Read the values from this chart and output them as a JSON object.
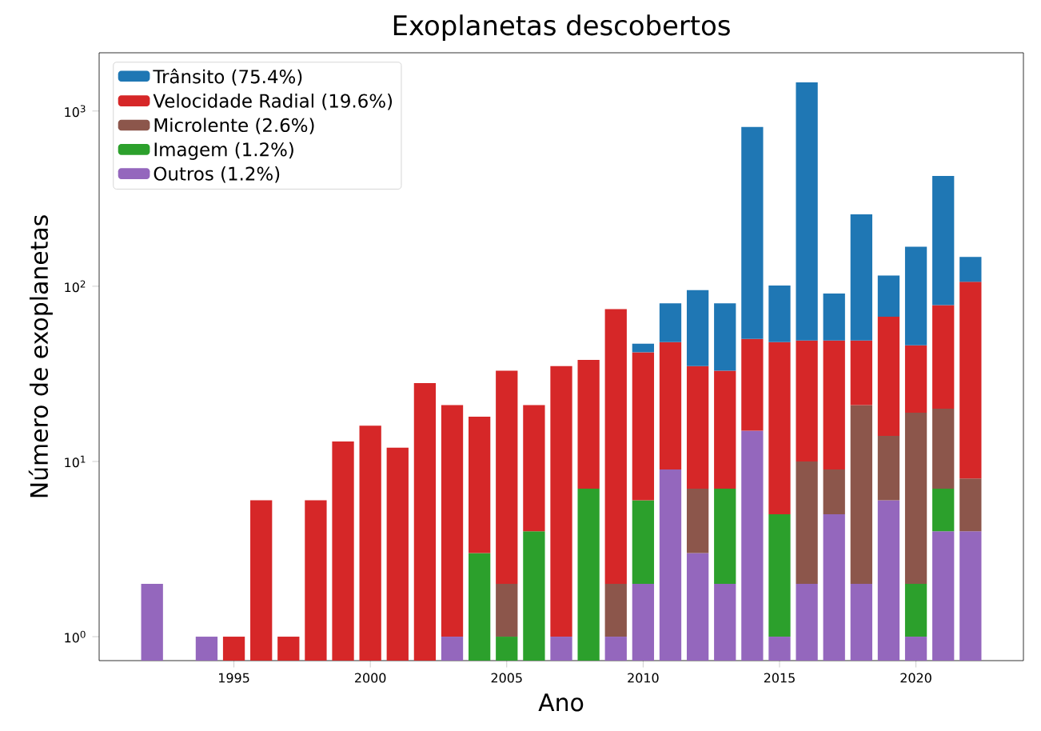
{
  "chart_data": {
    "type": "bar",
    "title": "Exoplanetas descobertos",
    "xlabel": "Ano",
    "ylabel": "Número de exoplanetas",
    "x": [
      1992,
      1994,
      1995,
      1996,
      1997,
      1998,
      1999,
      2000,
      2001,
      2002,
      2003,
      2004,
      2005,
      2006,
      2007,
      2008,
      2009,
      2010,
      2011,
      2012,
      2013,
      2014,
      2015,
      2016,
      2017,
      2018,
      2019,
      2020,
      2021,
      2022
    ],
    "stacked": true,
    "log": "y",
    "legend": "top left",
    "grid": false,
    "xlim": [
      1990.06,
      2023.94
    ],
    "xticks": [
      1995,
      2000,
      2005,
      2010,
      2015,
      2020
    ],
    "ylim": [
      0.73,
      2150
    ],
    "yticks": [
      {
        "value": 1,
        "label": "10$^{0}$"
      },
      {
        "value": 10,
        "label": "10$^{1}$"
      },
      {
        "value": 100,
        "label": "10$^{2}$"
      },
      {
        "value": 1000,
        "label": "10$^{3}$"
      }
    ],
    "series": [
      {
        "name": "Outros (1.2%)",
        "color": "#9467bd",
        "values": [
          2,
          1,
          null,
          null,
          null,
          null,
          null,
          null,
          null,
          null,
          1,
          null,
          null,
          null,
          1,
          null,
          1,
          2,
          9,
          3,
          2,
          15,
          1,
          2,
          5,
          2,
          6,
          1,
          4,
          4
        ]
      },
      {
        "name": "Imagem (1.2%)",
        "color": "#2ca02c",
        "values": [
          null,
          null,
          null,
          null,
          null,
          null,
          null,
          null,
          null,
          null,
          null,
          3,
          1,
          4,
          null,
          7,
          null,
          4,
          null,
          null,
          5,
          null,
          4,
          null,
          null,
          null,
          null,
          1,
          3,
          null
        ]
      },
      {
        "name": "Microlente (2.6%)",
        "color": "#8c564b",
        "values": [
          null,
          null,
          null,
          null,
          null,
          null,
          null,
          null,
          null,
          null,
          null,
          null,
          1,
          null,
          null,
          null,
          1,
          null,
          null,
          4,
          null,
          null,
          null,
          8,
          4,
          19,
          8,
          17,
          13,
          4
        ]
      },
      {
        "name": "Velocidade Radial (19.6%)",
        "color": "#d62728",
        "values": [
          null,
          null,
          1,
          6,
          1,
          6,
          13,
          16,
          12,
          28,
          20,
          15,
          31,
          17,
          34,
          31,
          72,
          36,
          39,
          28,
          26,
          35,
          43,
          39,
          40,
          28,
          53,
          27,
          58,
          98
        ]
      },
      {
        "name": "Trânsito (75.4%)",
        "color": "#1f77b4",
        "values": [
          null,
          null,
          null,
          null,
          null,
          null,
          null,
          null,
          null,
          null,
          null,
          null,
          null,
          null,
          null,
          null,
          null,
          5,
          32,
          60,
          47,
          760,
          53,
          1410,
          42,
          208,
          48,
          122,
          348,
          41
        ]
      }
    ]
  }
}
